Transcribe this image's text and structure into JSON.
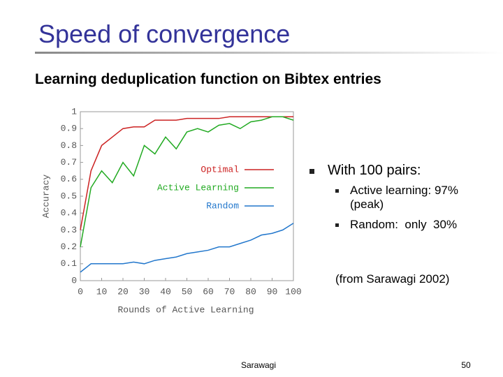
{
  "title": "Speed of convergence",
  "subtitle": "Learning deduplication function on Bibtex entries",
  "bullets": {
    "main": "With 100 pairs:",
    "items": [
      "Active learning: 97% (peak)",
      "Random:  only  30%"
    ]
  },
  "source": "(from Sarawagi 2002)",
  "footer": "Sarawagi",
  "page_number": "50",
  "chart_data": {
    "type": "line",
    "xlabel": "Rounds of Active Learning",
    "ylabel": "Accuracy",
    "x": [
      0,
      5,
      10,
      15,
      20,
      25,
      30,
      35,
      40,
      45,
      50,
      55,
      60,
      65,
      70,
      75,
      80,
      85,
      90,
      95,
      100
    ],
    "series": [
      {
        "name": "Optimal",
        "color": "#cc2222",
        "values": [
          0.3,
          0.65,
          0.8,
          0.85,
          0.9,
          0.91,
          0.91,
          0.95,
          0.95,
          0.95,
          0.96,
          0.96,
          0.96,
          0.96,
          0.97,
          0.97,
          0.97,
          0.97,
          0.97,
          0.97,
          0.97
        ]
      },
      {
        "name": "Active Learning",
        "color": "#22aa22",
        "values": [
          0.2,
          0.55,
          0.65,
          0.58,
          0.7,
          0.62,
          0.8,
          0.75,
          0.85,
          0.78,
          0.88,
          0.9,
          0.88,
          0.92,
          0.93,
          0.9,
          0.94,
          0.95,
          0.97,
          0.97,
          0.95
        ]
      },
      {
        "name": "Random",
        "color": "#2277cc",
        "values": [
          0.05,
          0.1,
          0.1,
          0.1,
          0.1,
          0.11,
          0.1,
          0.12,
          0.13,
          0.14,
          0.16,
          0.17,
          0.18,
          0.2,
          0.2,
          0.22,
          0.24,
          0.27,
          0.28,
          0.3,
          0.34
        ]
      }
    ],
    "xlim": [
      0,
      100
    ],
    "xticks": [
      0,
      10,
      20,
      30,
      40,
      50,
      60,
      70,
      80,
      90,
      100
    ],
    "ylim": [
      0,
      1
    ],
    "yticks": [
      0,
      0.1,
      0.2,
      0.3,
      0.4,
      0.5,
      0.6,
      0.7,
      0.8,
      0.9,
      1
    ],
    "grid": false,
    "legend": "center right"
  }
}
